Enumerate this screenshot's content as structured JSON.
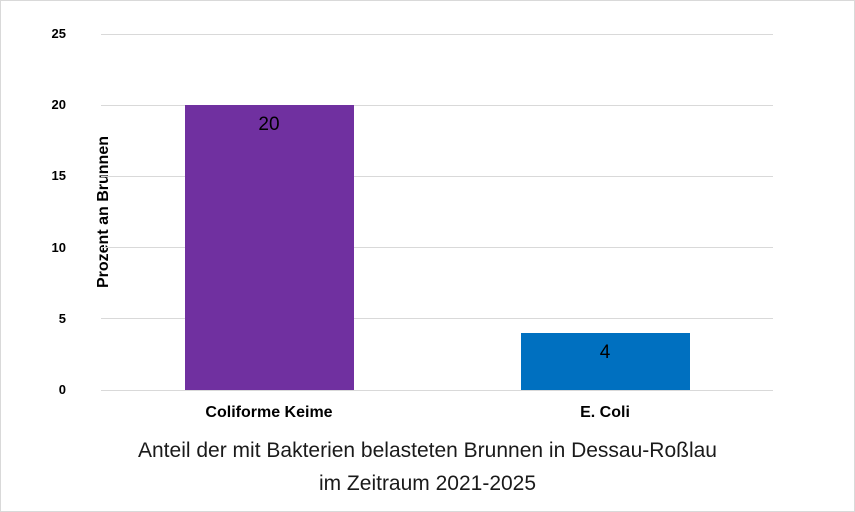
{
  "frame": {
    "background_color": "#ffffff",
    "border_color": "#d9d9d9"
  },
  "chart_data": {
    "type": "bar",
    "title": "Anteil der mit Bakterien belasteten Brunnen in Dessau-Roßlau im Zeitraum 2021-2025",
    "title_lines": [
      "Anteil der mit Bakterien belasteten Brunnen in Dessau-Roßlau",
      "im Zeitraum 2021-2025"
    ],
    "xlabel": "",
    "ylabel": "Prozent an Brunnen",
    "categories": [
      "Coliforme Keime",
      "E. Coli"
    ],
    "values": [
      20,
      4
    ],
    "data_labels": [
      "20",
      "4"
    ],
    "bar_colors": [
      "#7030A0",
      "#0070C0"
    ],
    "ylim": [
      0,
      25
    ],
    "yticks": [
      0,
      5,
      10,
      15,
      20,
      25
    ],
    "grid": "horizontal",
    "gridline_color": "#d9d9d9",
    "legend_position": "none"
  }
}
